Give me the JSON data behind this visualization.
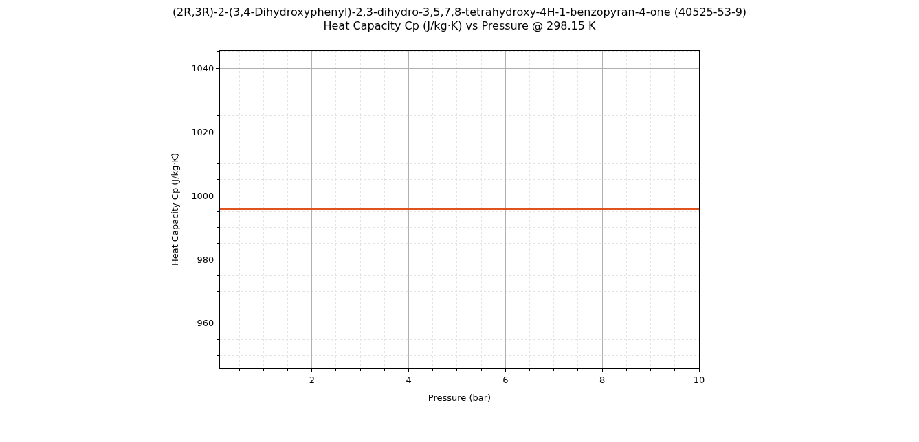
{
  "chart_data": {
    "type": "line",
    "title": "(2R,3R)-2-(3,4-Dihydroxyphenyl)-2,3-dihydro-3,5,7,8-tetrahydroxy-4H-1-benzopyran-4-one (40525-53-9)",
    "subtitle": "Heat Capacity Cp (J/kg·K) vs Pressure @ 298.15 K",
    "xlabel": "Pressure (bar)",
    "ylabel": "Heat Capacity Cp (J/kg·K)",
    "x": [
      0.1,
      10
    ],
    "series": [
      {
        "color": "#e0531f",
        "values": [
          995.8,
          995.8
        ]
      }
    ],
    "xlim": [
      0.1,
      10
    ],
    "xticks": [
      2,
      4,
      6,
      8,
      10
    ],
    "ylim": [
      946,
      1045.4
    ],
    "yticks": [
      960,
      980,
      1000,
      1020,
      1040
    ],
    "grid": true,
    "marker": "none",
    "line_style": "solid"
  }
}
